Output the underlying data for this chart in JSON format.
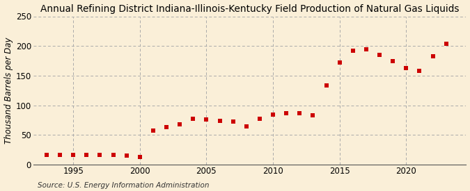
{
  "title": "Annual Refining District Indiana-Illinois-Kentucky Field Production of Natural Gas Liquids",
  "ylabel": "Thousand Barrels per Day",
  "source": "Source: U.S. Energy Information Administration",
  "background_color": "#faefd8",
  "plot_bg_color": "#faefd8",
  "marker_color": "#cc0000",
  "years": [
    1993,
    1994,
    1995,
    1996,
    1997,
    1998,
    1999,
    2000,
    2001,
    2002,
    2003,
    2004,
    2005,
    2006,
    2007,
    2008,
    2009,
    2010,
    2011,
    2012,
    2013,
    2014,
    2015,
    2016,
    2017,
    2018,
    2019,
    2020,
    2021,
    2022,
    2023
  ],
  "values": [
    17,
    16,
    17,
    17,
    16,
    16,
    15,
    13,
    57,
    63,
    68,
    78,
    76,
    74,
    73,
    65,
    78,
    84,
    87,
    87,
    83,
    133,
    172,
    192,
    194,
    185,
    174,
    163,
    158,
    183,
    204
  ],
  "ylim": [
    0,
    250
  ],
  "yticks": [
    0,
    50,
    100,
    150,
    200,
    250
  ],
  "xlim": [
    1992.0,
    2024.5
  ],
  "xticks": [
    1995,
    2000,
    2005,
    2010,
    2015,
    2020
  ],
  "grid_color": "#aaaaaa",
  "title_fontsize": 9.8,
  "label_fontsize": 8.5,
  "tick_fontsize": 8.5,
  "source_fontsize": 7.5
}
